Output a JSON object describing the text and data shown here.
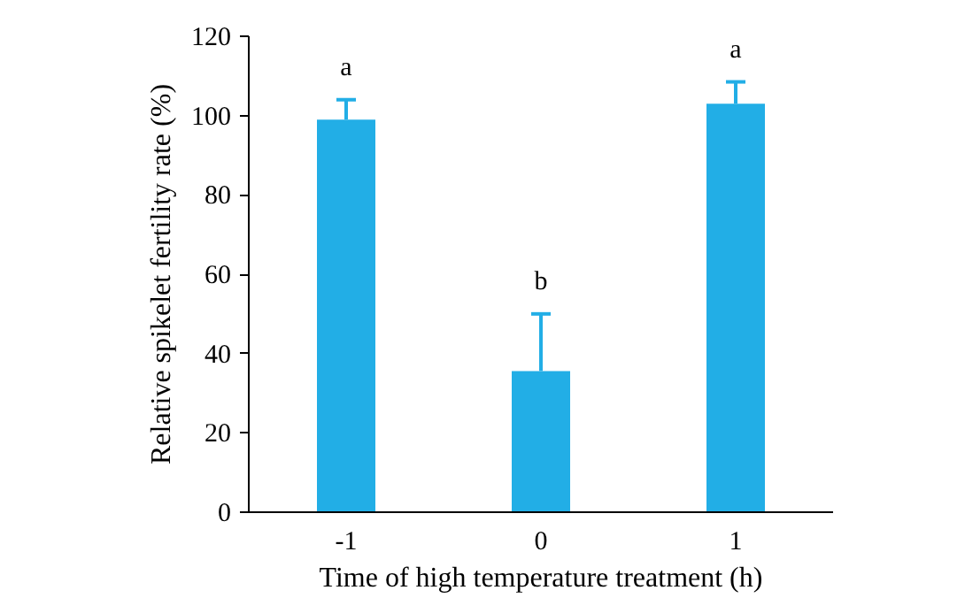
{
  "chart_data": {
    "type": "bar",
    "xlabel": "Time of high temperature treatment (h)",
    "ylabel": "Relative spikelet fertility rate (%)",
    "categories": [
      "-1",
      "0",
      "1"
    ],
    "values": [
      99,
      35.6,
      103
    ],
    "color": "#22aee6",
    "errors": [
      [
        99,
        104
      ],
      [
        35.6,
        50
      ],
      [
        103,
        108.5
      ]
    ],
    "ylim": [
      0,
      120
    ],
    "yticks": [
      0,
      20,
      40,
      60,
      80,
      100,
      120
    ],
    "grid": false,
    "annotations": [
      {
        "text": "a",
        "x": "-1",
        "y": 104
      },
      {
        "text": "b",
        "x": "0",
        "y": 50
      },
      {
        "text": "a",
        "x": "1",
        "y": 108.5
      }
    ]
  }
}
